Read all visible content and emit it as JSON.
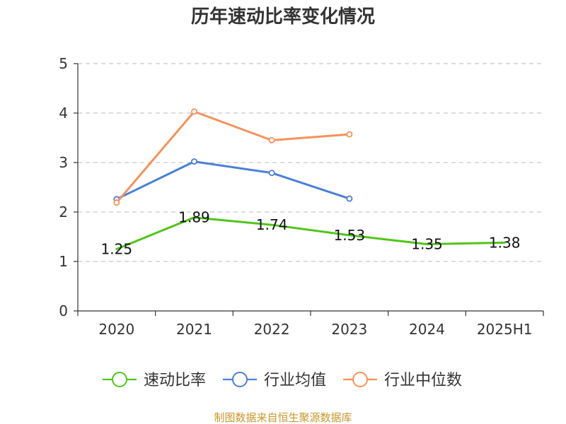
{
  "chart_data": {
    "type": "line",
    "title": "历年速动比率变化情况",
    "categories": [
      "2020",
      "2021",
      "2022",
      "2023",
      "2024",
      "2025H1"
    ],
    "ylim": [
      0,
      5
    ],
    "yticks": [
      0,
      1,
      2,
      3,
      4,
      5
    ],
    "grid": true,
    "legend_position": "bottom",
    "series": [
      {
        "name": "速动比率",
        "color": "#52c41a",
        "values": [
          1.25,
          1.89,
          1.74,
          1.53,
          1.35,
          1.38
        ],
        "show_labels": true,
        "show_markers": false
      },
      {
        "name": "行业均值",
        "color": "#4a7fd8",
        "values": [
          2.26,
          3.02,
          2.79,
          2.27,
          null,
          null
        ],
        "show_labels": false,
        "show_markers": true
      },
      {
        "name": "行业中位数",
        "color": "#f5915a",
        "values": [
          2.19,
          4.03,
          3.45,
          3.57,
          null,
          null
        ],
        "show_labels": false,
        "show_markers": true
      }
    ],
    "source": "制图数据来自恒生聚源数据库"
  }
}
